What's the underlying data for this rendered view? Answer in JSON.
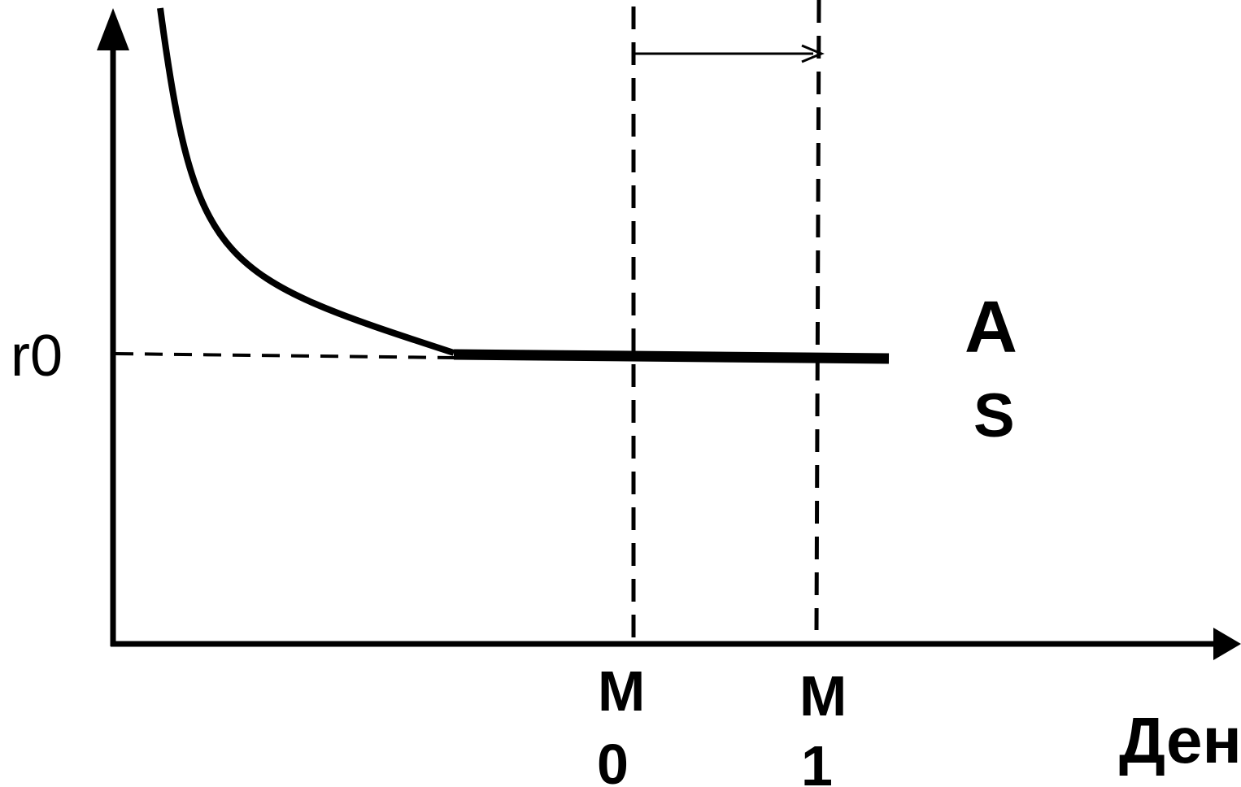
{
  "labels": {
    "r0": "r0",
    "curve_label_line1": "A",
    "curve_label_line2": "S",
    "m0_line1": "M",
    "m0_line2": "0",
    "m1_line1": "M",
    "m1_line2": "1",
    "x_axis": "Ден"
  },
  "colors": {
    "ink": "#000000",
    "background": "#ffffff"
  }
}
